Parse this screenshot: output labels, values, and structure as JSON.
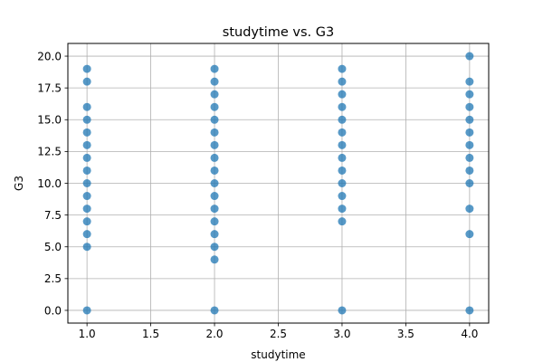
{
  "chart_data": {
    "type": "scatter",
    "title": "studytime vs. G3",
    "xlabel": "studytime",
    "ylabel": "G3",
    "xlim": [
      0.85,
      4.15
    ],
    "ylim": [
      -1.0,
      21.0
    ],
    "xticks": [
      1.0,
      1.5,
      2.0,
      2.5,
      3.0,
      3.5,
      4.0
    ],
    "xtick_labels": [
      "1.0",
      "1.5",
      "2.0",
      "2.5",
      "3.0",
      "3.5",
      "4.0"
    ],
    "yticks": [
      0.0,
      2.5,
      5.0,
      7.5,
      10.0,
      12.5,
      15.0,
      17.5,
      20.0
    ],
    "ytick_labels": [
      "0.0",
      "2.5",
      "5.0",
      "7.5",
      "10.0",
      "12.5",
      "15.0",
      "17.5",
      "20.0"
    ],
    "grid": true,
    "point_color": "#1f77b4",
    "points": [
      {
        "x": 1,
        "y": [
          0,
          5,
          6,
          7,
          8,
          9,
          10,
          11,
          12,
          13,
          14,
          15,
          16,
          18,
          19
        ]
      },
      {
        "x": 2,
        "y": [
          0,
          4,
          5,
          6,
          7,
          8,
          9,
          10,
          11,
          12,
          13,
          14,
          15,
          16,
          17,
          18,
          19
        ]
      },
      {
        "x": 3,
        "y": [
          0,
          7,
          8,
          9,
          10,
          11,
          12,
          13,
          14,
          15,
          16,
          17,
          18,
          19
        ]
      },
      {
        "x": 4,
        "y": [
          0,
          6,
          8,
          10,
          11,
          12,
          13,
          14,
          15,
          16,
          17,
          18,
          20
        ]
      }
    ]
  }
}
